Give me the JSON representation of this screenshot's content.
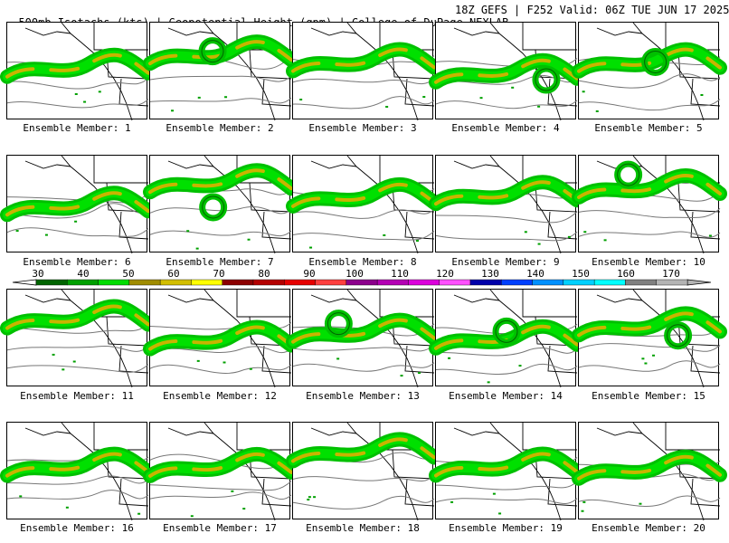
{
  "header": {
    "left": "500mb Isotachs (kts) | Geopotential Height (gpm) | College of DuPage NEXLAB",
    "right": "18Z GEFS | F252 Valid: 06Z TUE JUN 17 2025"
  },
  "members": [
    {
      "label": "Ensemble Member: 1"
    },
    {
      "label": "Ensemble Member: 2"
    },
    {
      "label": "Ensemble Member: 3"
    },
    {
      "label": "Ensemble Member: 4"
    },
    {
      "label": "Ensemble Member: 5"
    },
    {
      "label": "Ensemble Member: 6"
    },
    {
      "label": "Ensemble Member: 7"
    },
    {
      "label": "Ensemble Member: 8"
    },
    {
      "label": "Ensemble Member: 9"
    },
    {
      "label": "Ensemble Member: 10"
    },
    {
      "label": "Ensemble Member: 11"
    },
    {
      "label": "Ensemble Member: 12"
    },
    {
      "label": "Ensemble Member: 13"
    },
    {
      "label": "Ensemble Member: 14"
    },
    {
      "label": "Ensemble Member: 15"
    },
    {
      "label": "Ensemble Member: 16"
    },
    {
      "label": "Ensemble Member: 17"
    },
    {
      "label": "Ensemble Member: 18"
    },
    {
      "label": "Ensemble Member: 19"
    },
    {
      "label": "Ensemble Member: 20"
    }
  ],
  "colorbar": {
    "ticks": [
      "30",
      "40",
      "50",
      "60",
      "70",
      "80",
      "90",
      "100",
      "110",
      "120",
      "130",
      "140",
      "150",
      "160",
      "170"
    ],
    "colors": [
      "#006400",
      "#00a000",
      "#00dc00",
      "#a08c00",
      "#d2be00",
      "#ffff00",
      "#8c0000",
      "#b40000",
      "#e60000",
      "#ff4040",
      "#8c008c",
      "#b400b4",
      "#dc00dc",
      "#ff50ff",
      "#0000aa",
      "#0040ff",
      "#0090ff",
      "#00d0ff",
      "#00ffff",
      "#808080",
      "#b4b4b4"
    ]
  }
}
